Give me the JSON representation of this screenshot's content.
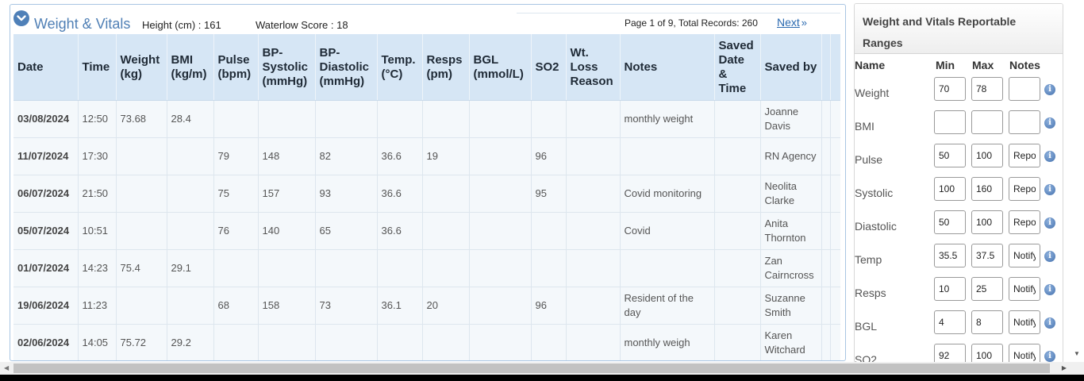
{
  "panel": {
    "title": "Weight & Vitals",
    "height_text": "Height (cm) : 161",
    "waterlow_text": "Waterlow Score : 18",
    "pager_text": "Page 1 of 9, Total Records: 260",
    "next_label": "Next"
  },
  "table": {
    "headers": [
      "Date",
      "Time",
      "Weight (kg)",
      "BMI (kg/m)",
      "Pulse (bpm)",
      "BP-Systolic (mmHg)",
      "BP-Diastolic (mmHg)",
      "Temp. (°C)",
      "Resps (pm)",
      "BGL (mmol/L)",
      "SO2",
      "Wt. Loss Reason",
      "Notes",
      "Saved Date & Time",
      "Saved by"
    ],
    "rows": [
      [
        "03/08/2024",
        "12:50",
        "73.68",
        "28.4",
        "",
        "",
        "",
        "",
        "",
        "",
        "",
        "",
        "monthly weight",
        "",
        "Joanne Davis"
      ],
      [
        "11/07/2024",
        "17:30",
        "",
        "",
        "79",
        "148",
        "82",
        "36.6",
        "19",
        "",
        "96",
        "",
        "",
        "",
        "RN Agency"
      ],
      [
        "06/07/2024",
        "21:50",
        "",
        "",
        "75",
        "157",
        "93",
        "36.6",
        "",
        "",
        "95",
        "",
        "Covid monitoring",
        "",
        "Neolita Clarke"
      ],
      [
        "05/07/2024",
        "10:51",
        "",
        "",
        "76",
        "140",
        "65",
        "36.6",
        "",
        "",
        "",
        "",
        "Covid",
        "",
        "Anita Thornton"
      ],
      [
        "01/07/2024",
        "14:23",
        "75.4",
        "29.1",
        "",
        "",
        "",
        "",
        "",
        "",
        "",
        "",
        "",
        "",
        "Zan Cairncross"
      ],
      [
        "19/06/2024",
        "11:23",
        "",
        "",
        "68",
        "158",
        "73",
        "36.1",
        "20",
        "",
        "96",
        "",
        "Resident of the day",
        "",
        "Suzanne Smith"
      ],
      [
        "02/06/2024",
        "14:05",
        "75.72",
        "29.2",
        "",
        "",
        "",
        "",
        "",
        "",
        "",
        "",
        "monthly weigh",
        "",
        "Karen Witchard"
      ]
    ]
  },
  "ranges": {
    "title": "Weight and Vitals Reportable Ranges",
    "col_name": "Name",
    "col_min": "Min",
    "col_max": "Max",
    "col_notes": "Notes",
    "items": [
      {
        "name": "Weight",
        "min": "70",
        "max": "78",
        "notes": ""
      },
      {
        "name": "BMI",
        "min": "",
        "max": "",
        "notes": ""
      },
      {
        "name": "Pulse",
        "min": "50",
        "max": "100",
        "notes": "Report"
      },
      {
        "name": "Systolic",
        "min": "100",
        "max": "160",
        "notes": "Report"
      },
      {
        "name": "Diastolic",
        "min": "50",
        "max": "100",
        "notes": "Report"
      },
      {
        "name": "Temp",
        "min": "35.5",
        "max": "37.5",
        "notes": "Notify"
      },
      {
        "name": "Resps",
        "min": "10",
        "max": "25",
        "notes": "Notify"
      },
      {
        "name": "BGL",
        "min": "4",
        "max": "8",
        "notes": "Notify"
      },
      {
        "name": "SO2",
        "min": "92",
        "max": "100",
        "notes": "Notify"
      }
    ]
  },
  "icons": {
    "collapse": "chevron-down-circle-icon",
    "next": "double-chevron-right-icon",
    "info": "info-icon"
  }
}
